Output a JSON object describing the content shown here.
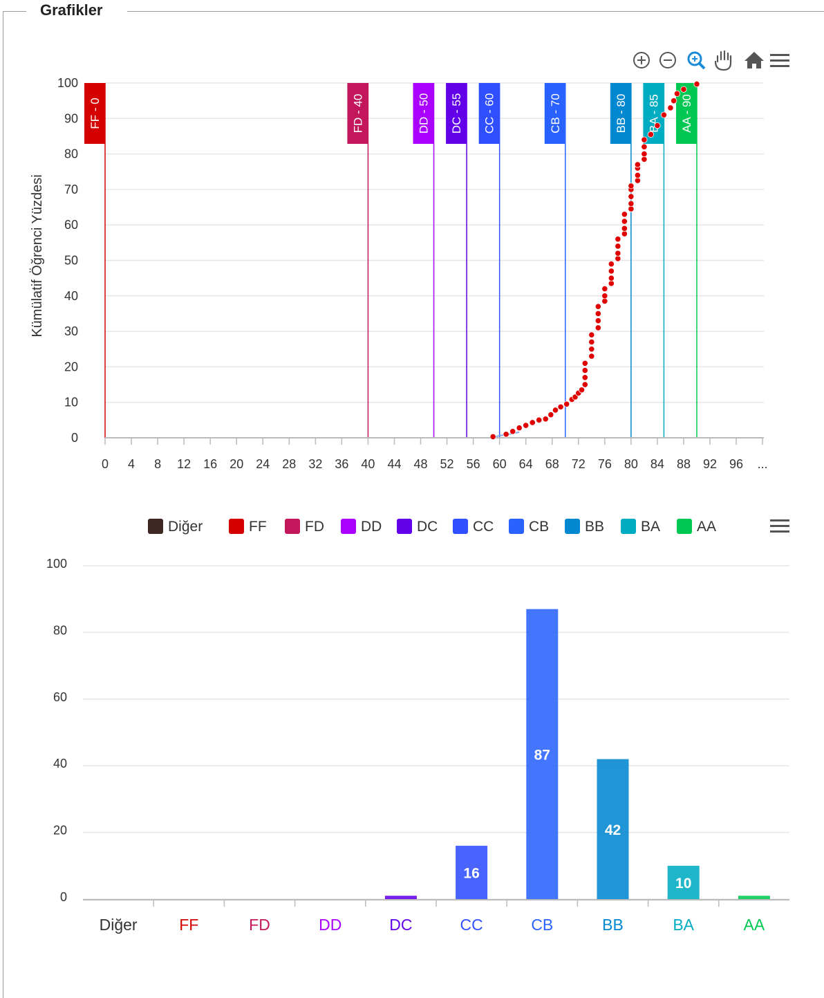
{
  "panel": {
    "title": "Grafikler"
  },
  "toolbar": {
    "items": [
      {
        "name": "zoom-in-icon"
      },
      {
        "name": "zoom-out-icon"
      },
      {
        "name": "zoom-selection-icon",
        "color": "#1a8bd8"
      },
      {
        "name": "pan-hand-icon"
      },
      {
        "name": "home-reset-icon"
      },
      {
        "name": "menu-icon"
      }
    ]
  },
  "chart_data": [
    {
      "type": "scatter",
      "ylabel": "Kümülatif Öğrenci Yüzdesi",
      "xlim": [
        0,
        100
      ],
      "ylim": [
        0,
        100
      ],
      "x_ticks": [
        "0",
        "4",
        "8",
        "12",
        "16",
        "20",
        "24",
        "28",
        "32",
        "36",
        "40",
        "44",
        "48",
        "52",
        "56",
        "60",
        "64",
        "68",
        "72",
        "76",
        "80",
        "84",
        "88",
        "92",
        "96",
        "..."
      ],
      "y_ticks": [
        "0",
        "10",
        "20",
        "30",
        "40",
        "50",
        "60",
        "70",
        "80",
        "90",
        "100"
      ],
      "grid": true,
      "thresholds": [
        {
          "label": "FF - 0",
          "x": 0,
          "color": "#d50000"
        },
        {
          "label": "FD - 40",
          "x": 40,
          "color": "#c2185b"
        },
        {
          "label": "DD - 50",
          "x": 50,
          "color": "#aa00ff"
        },
        {
          "label": "DC - 55",
          "x": 55,
          "color": "#6200ea"
        },
        {
          "label": "CC - 60",
          "x": 60,
          "color": "#304ffe"
        },
        {
          "label": "CB - 70",
          "x": 70,
          "color": "#2962ff"
        },
        {
          "label": "BB - 80",
          "x": 80,
          "color": "#0288d1"
        },
        {
          "label": "BA - 85",
          "x": 85,
          "color": "#00acc1"
        },
        {
          "label": "AA - 90",
          "x": 90,
          "color": "#00c853"
        }
      ],
      "points_color": "#e00000",
      "points": [
        [
          59,
          0.3
        ],
        [
          61,
          1
        ],
        [
          62,
          1.8
        ],
        [
          63,
          2.8
        ],
        [
          64,
          3.5
        ],
        [
          65,
          4.3
        ],
        [
          66,
          5
        ],
        [
          67,
          5.3
        ],
        [
          67.8,
          6.5
        ],
        [
          68.5,
          7.8
        ],
        [
          69.3,
          8.7
        ],
        [
          70.2,
          9.5
        ],
        [
          71,
          10.8
        ],
        [
          71.5,
          11.5
        ],
        [
          72,
          12.6
        ],
        [
          72.5,
          13.5
        ],
        [
          73,
          15
        ],
        [
          73,
          17
        ],
        [
          73,
          19
        ],
        [
          73,
          21
        ],
        [
          74,
          23
        ],
        [
          74,
          25
        ],
        [
          74,
          27
        ],
        [
          74,
          29
        ],
        [
          75,
          31
        ],
        [
          75,
          33
        ],
        [
          75,
          35
        ],
        [
          75,
          37
        ],
        [
          76,
          38.5
        ],
        [
          76,
          40
        ],
        [
          76,
          42
        ],
        [
          77,
          43.5
        ],
        [
          77,
          45
        ],
        [
          77,
          47
        ],
        [
          77,
          49
        ],
        [
          78,
          50.5
        ],
        [
          78,
          52
        ],
        [
          78,
          54
        ],
        [
          78,
          56
        ],
        [
          79,
          57.5
        ],
        [
          79,
          59
        ],
        [
          79,
          61
        ],
        [
          79,
          63
        ],
        [
          80,
          64.5
        ],
        [
          80,
          66
        ],
        [
          80,
          68
        ],
        [
          80,
          70
        ],
        [
          80,
          71
        ],
        [
          81,
          72.5
        ],
        [
          81,
          74
        ],
        [
          81,
          76
        ],
        [
          81,
          77
        ],
        [
          82,
          78.5
        ],
        [
          82,
          80
        ],
        [
          82,
          82
        ],
        [
          82,
          84
        ],
        [
          83,
          85.5
        ],
        [
          84,
          88
        ],
        [
          85,
          91
        ],
        [
          86,
          93
        ],
        [
          86.5,
          95
        ],
        [
          87,
          97
        ],
        [
          88,
          98.2
        ],
        [
          90,
          99.7
        ]
      ],
      "line_points": [
        [
          58.5,
          0
        ],
        [
          60,
          0.6
        ],
        [
          62,
          1.2
        ],
        [
          63,
          1.6
        ]
      ]
    },
    {
      "type": "bar",
      "categories": [
        "Diğer",
        "FF",
        "FD",
        "DD",
        "DC",
        "CC",
        "CB",
        "BB",
        "BA",
        "AA"
      ],
      "values": [
        0,
        0,
        0,
        0,
        1,
        16,
        87,
        42,
        10,
        1
      ],
      "data_labels": [
        "",
        "",
        "",
        "",
        "",
        "16",
        "87",
        "42",
        "10",
        ""
      ],
      "colors": [
        "#3e2723",
        "#d50000",
        "#c2185b",
        "#aa00ff",
        "#6200ea",
        "#304ffe",
        "#2962ff",
        "#0288d1",
        "#00acc1",
        "#00c853"
      ],
      "legend": [
        "Diğer",
        "FF",
        "FD",
        "DD",
        "DC",
        "CC",
        "CB",
        "BB",
        "BA",
        "AA"
      ],
      "legend_position": "top",
      "ylim": [
        0,
        100
      ],
      "y_ticks": [
        "0",
        "20",
        "40",
        "60",
        "80",
        "100"
      ],
      "grid": true
    }
  ]
}
